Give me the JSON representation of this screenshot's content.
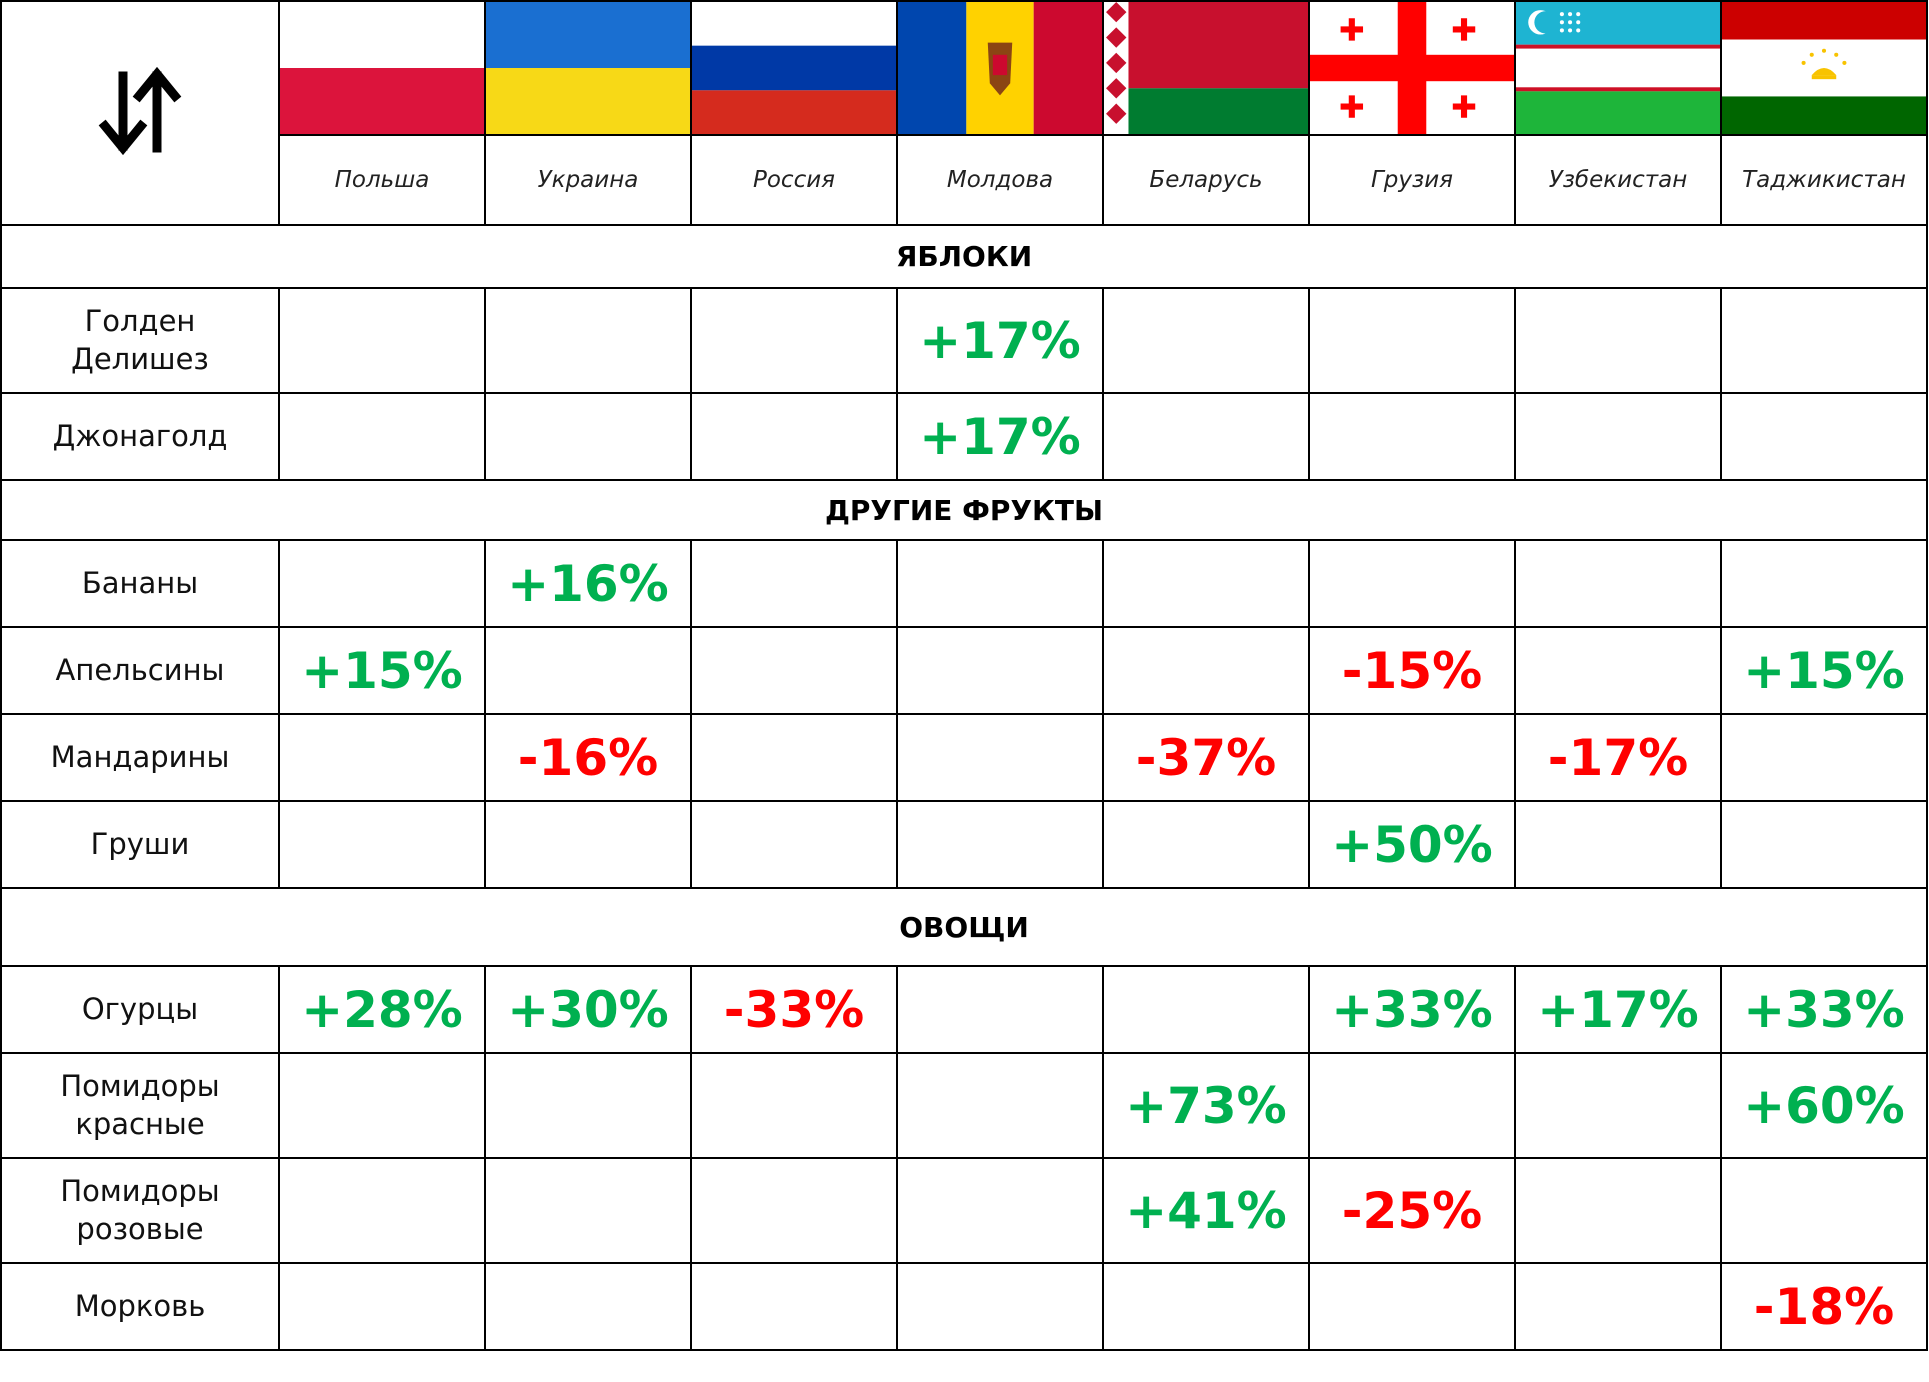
{
  "header": {
    "countries": [
      "Польша",
      "Украина",
      "Россия",
      "Молдова",
      "Беларусь",
      "Грузия",
      "Узбекистан",
      "Таджикистан"
    ]
  },
  "sections": [
    {
      "title": "ЯБЛОКИ",
      "rows": [
        {
          "name": "Голден Делишез",
          "cells": [
            null,
            null,
            null,
            "+17%",
            null,
            null,
            null,
            null
          ]
        },
        {
          "name": "Джонаголд",
          "cells": [
            null,
            null,
            null,
            "+17%",
            null,
            null,
            null,
            null
          ]
        }
      ]
    },
    {
      "title": "ДРУГИЕ ФРУКТЫ",
      "rows": [
        {
          "name": "Бананы",
          "cells": [
            null,
            "+16%",
            null,
            null,
            null,
            null,
            null,
            null
          ]
        },
        {
          "name": "Апельсины",
          "cells": [
            "+15%",
            null,
            null,
            null,
            null,
            "-15%",
            null,
            "+15%"
          ]
        },
        {
          "name": "Мандарины",
          "cells": [
            null,
            "-16%",
            null,
            null,
            "-37%",
            null,
            "-17%",
            null
          ]
        },
        {
          "name": "Груши",
          "cells": [
            null,
            null,
            null,
            null,
            null,
            "+50%",
            null,
            null
          ]
        }
      ]
    },
    {
      "title": "ОВОЩИ",
      "rows": [
        {
          "name": "Огурцы",
          "cells": [
            "+28%",
            "+30%",
            "-33%",
            null,
            null,
            "+33%",
            "+17%",
            "+33%"
          ]
        },
        {
          "name": "Помидоры красные",
          "cells": [
            null,
            null,
            null,
            null,
            "+73%",
            null,
            null,
            "+60%"
          ]
        },
        {
          "name": "Помидоры розовые",
          "cells": [
            null,
            null,
            null,
            null,
            "+41%",
            "-25%",
            null,
            null
          ]
        },
        {
          "name": "Морковь",
          "cells": [
            null,
            null,
            null,
            null,
            null,
            null,
            null,
            "-18%"
          ]
        }
      ]
    }
  ],
  "positive_color": "#00b050",
  "negative_color": "#ff0000"
}
